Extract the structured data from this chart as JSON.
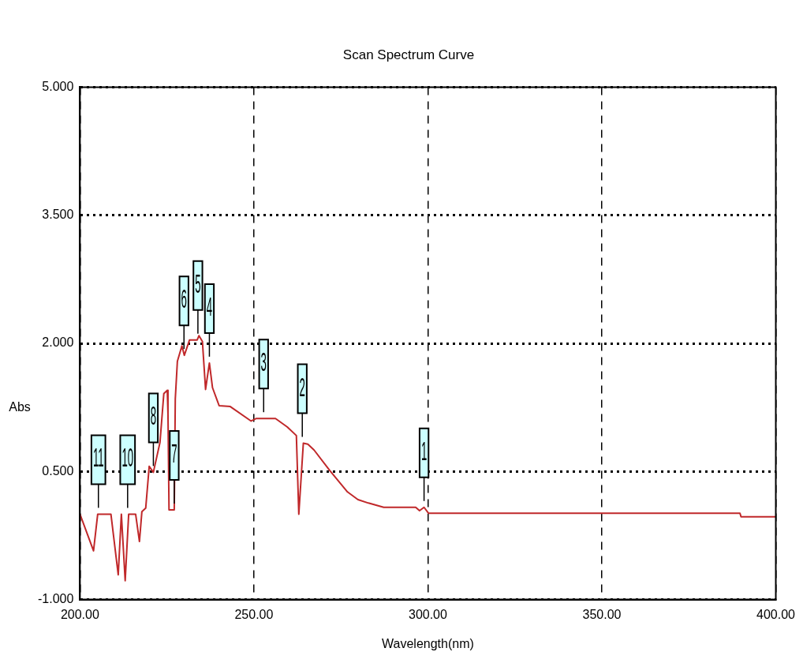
{
  "chart_data": {
    "type": "line",
    "title": "Scan Spectrum Curve",
    "xlabel": "Wavelength(nm)",
    "ylabel": "Abs",
    "xlim": [
      200,
      400
    ],
    "xticks": [
      {
        "value": 200,
        "label": "200.00"
      },
      {
        "value": 250,
        "label": "250.00"
      },
      {
        "value": 300,
        "label": "300.00"
      },
      {
        "value": 350,
        "label": "350.00"
      },
      {
        "value": 400,
        "label": "400.00"
      }
    ],
    "ylim": [
      -1,
      5
    ],
    "yticks": [
      {
        "value": -1,
        "label": "-1.000"
      },
      {
        "value": 0.5,
        "label": "0.500"
      },
      {
        "value": 2,
        "label": "2.000"
      },
      {
        "value": 3.5,
        "label": "3.500"
      },
      {
        "value": 5,
        "label": "5.000"
      }
    ],
    "grid": true,
    "legend": false,
    "marker": "none",
    "line_style": "solid",
    "series": [
      {
        "color": "#c0282a",
        "x": [
          200,
          203.9,
          205.1,
          208.9,
          211.0,
          211.9,
          213.0,
          214.0,
          216.0,
          217.1,
          217.8,
          218.9,
          219.9,
          221.1,
          223.0,
          224.1,
          225.1,
          225.3,
          225.6,
          227.1,
          227.4,
          228.0,
          229.3,
          230.0,
          231.5,
          233.7,
          234.2,
          235.2,
          236.1,
          237.2,
          238.1,
          240.0,
          243.2,
          249.2,
          250.7,
          256.2,
          259.6,
          262.2,
          262.9,
          264.2,
          265.5,
          267.3,
          271.8,
          276.9,
          279.9,
          282.9,
          287.3,
          296.5,
          297.6,
          298.9,
          300.2,
          389.7,
          390,
          400
        ],
        "values": [
          0,
          -0.43,
          0,
          0,
          -0.71,
          0,
          -0.78,
          0,
          0,
          -0.32,
          0.03,
          0.07,
          0.56,
          0.49,
          0.84,
          1.41,
          1.45,
          1.17,
          0.05,
          0.05,
          1.35,
          1.79,
          1.97,
          1.86,
          2.04,
          2.04,
          2.09,
          2.02,
          1.46,
          1.77,
          1.48,
          1.27,
          1.26,
          1.09,
          1.12,
          1.12,
          1.02,
          0.92,
          0,
          0.83,
          0.82,
          0.75,
          0.51,
          0.26,
          0.17,
          0.13,
          0.08,
          0.08,
          0.04,
          0.08,
          0.01,
          0.01,
          -0.03,
          -0.03
        ]
      }
    ],
    "annotations": [
      {
        "text": "1",
        "x": 298.9,
        "y": 0.08
      },
      {
        "text": "2",
        "x": 263.9,
        "y": 0.83
      },
      {
        "text": "3",
        "x": 252.8,
        "y": 1.12
      },
      {
        "text": "4",
        "x": 237.2,
        "y": 1.77
      },
      {
        "text": "5",
        "x": 233.9,
        "y": 2.04
      },
      {
        "text": "6",
        "x": 229.9,
        "y": 1.86
      },
      {
        "text": "7",
        "x": 227.1,
        "y": 0.05
      },
      {
        "text": "8",
        "x": 221.1,
        "y": 0.49
      },
      {
        "text": "10",
        "x": 213.7,
        "y": 0
      },
      {
        "text": "11",
        "x": 205.3,
        "y": 0
      }
    ]
  }
}
